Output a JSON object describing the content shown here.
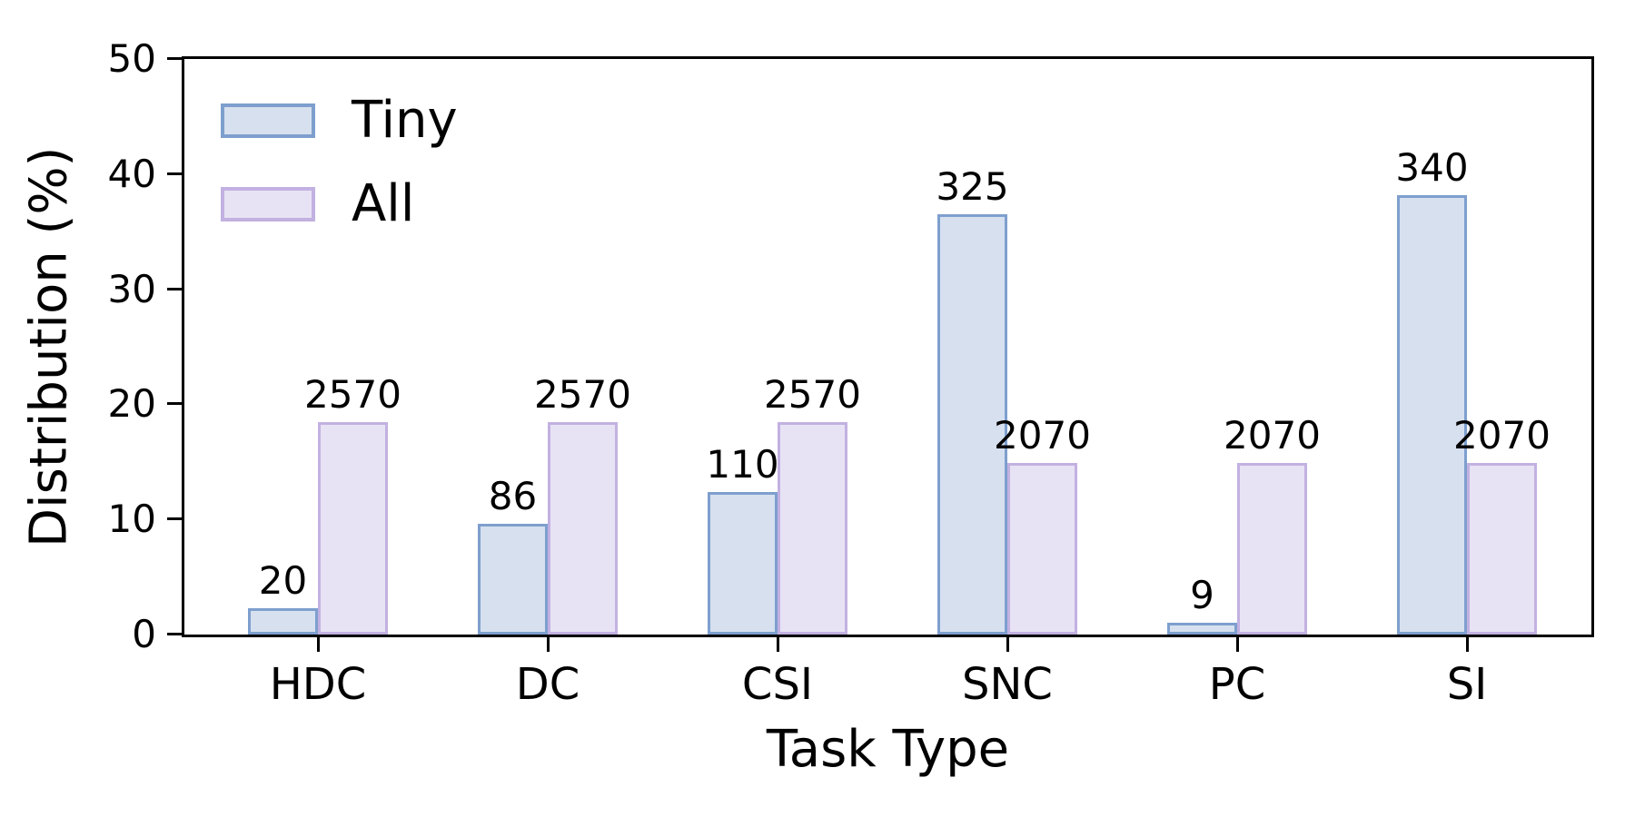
{
  "chart_data": {
    "type": "bar",
    "title": "",
    "xlabel": "Task Type",
    "ylabel": "Distribution (%)",
    "categories": [
      "HDC",
      "DC",
      "CSI",
      "SNC",
      "PC",
      "SI"
    ],
    "ylim": [
      0,
      50
    ],
    "yticks": [
      0,
      10,
      20,
      30,
      40,
      50
    ],
    "grid": false,
    "legend_position": "upper-left",
    "axis_color": "#000000",
    "series": [
      {
        "name": "Tiny",
        "values_pct": [
          2.25,
          9.66,
          12.36,
          36.52,
          1.01,
          38.2
        ],
        "bar_labels": [
          "20",
          "86",
          "110",
          "325",
          "9",
          "340"
        ],
        "fill": "#d6e0ef",
        "border": "#7e9fce"
      },
      {
        "name": "All",
        "values_pct": [
          18.46,
          18.46,
          18.46,
          14.87,
          14.87,
          14.87
        ],
        "bar_labels": [
          "2570",
          "2570",
          "2570",
          "2070",
          "2070",
          "2070"
        ],
        "fill": "#e8e3f4",
        "border": "#c2b1e1"
      }
    ]
  }
}
